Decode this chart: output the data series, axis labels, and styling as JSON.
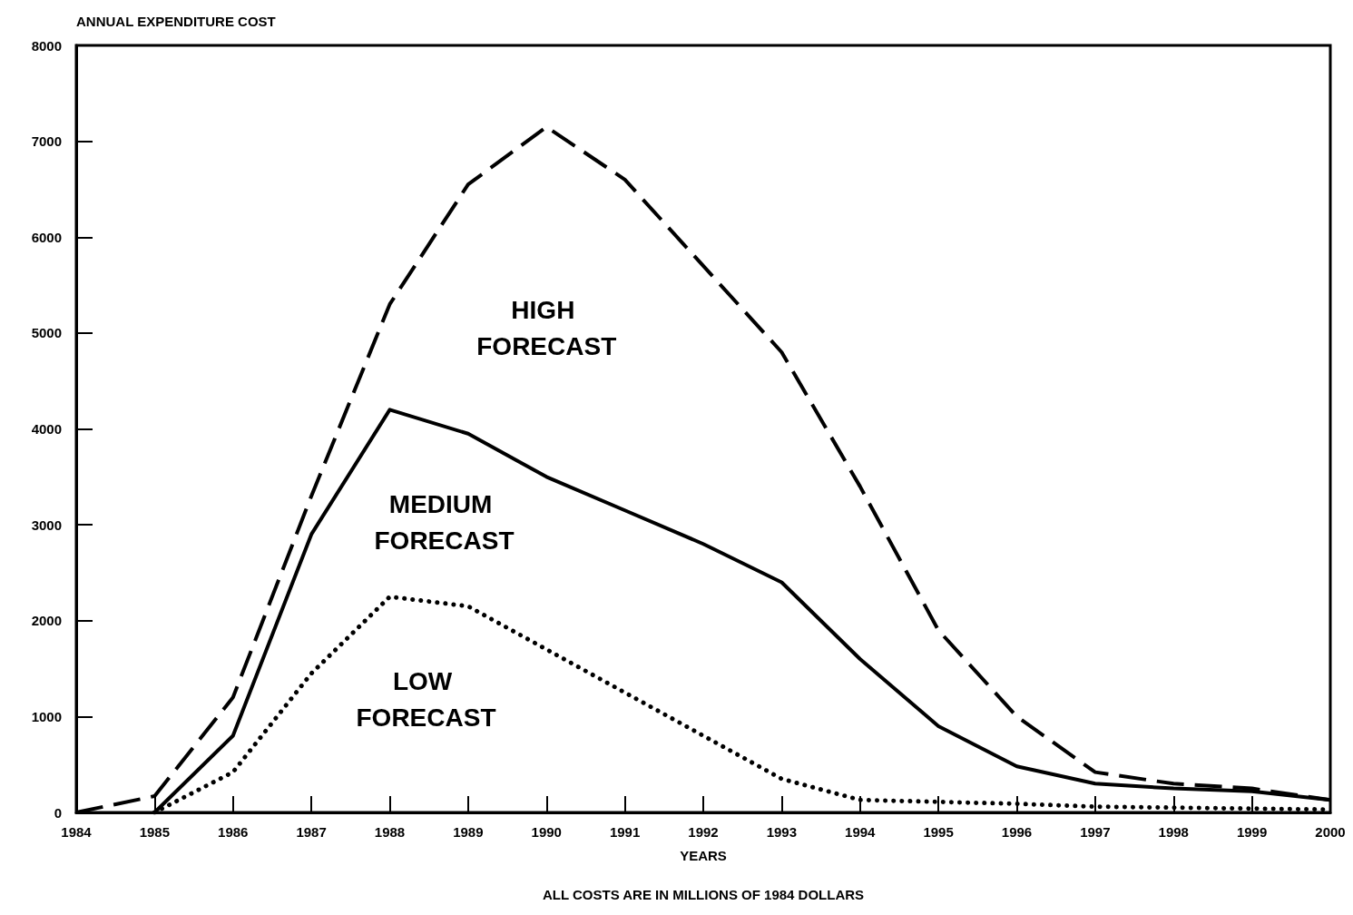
{
  "chart_data": {
    "type": "line",
    "ylabel": "ANNUAL EXPENDITURE COST",
    "xlabel": "YEARS",
    "x": [
      1984,
      1985,
      1986,
      1987,
      1988,
      1989,
      1990,
      1991,
      1992,
      1993,
      1994,
      1995,
      1996,
      1997,
      1998,
      1999,
      2000
    ],
    "series": [
      {
        "name": "HIGH FORECAST",
        "color": "#000000",
        "line_style": "dashed",
        "values": [
          0,
          170,
          1200,
          3300,
          5300,
          6550,
          7150,
          6600,
          5700,
          4800,
          3400,
          1900,
          1000,
          420,
          300,
          250,
          130
        ]
      },
      {
        "name": "MEDIUM FORECAST",
        "color": "#000000",
        "line_style": "solid",
        "values": [
          null,
          0,
          800,
          2900,
          4200,
          3950,
          3500,
          3150,
          2800,
          2400,
          1600,
          900,
          480,
          300,
          250,
          220,
          130
        ]
      },
      {
        "name": "LOW FORECAST",
        "color": "#000000",
        "line_style": "dotted",
        "values": [
          null,
          0,
          420,
          1450,
          2250,
          2150,
          1700,
          1250,
          800,
          350,
          130,
          110,
          90,
          60,
          50,
          40,
          30
        ]
      }
    ],
    "xlim": [
      1984,
      2000
    ],
    "xticks": [
      1984,
      1985,
      1986,
      1987,
      1988,
      1989,
      1990,
      1991,
      1992,
      1993,
      1994,
      1995,
      1996,
      1997,
      1998,
      1999,
      2000
    ],
    "ylim": [
      0,
      8000
    ],
    "yticks": [
      0,
      1000,
      2000,
      3000,
      4000,
      5000,
      6000,
      7000,
      8000
    ],
    "grid": false,
    "marker": "none",
    "annotations": [
      "ALL COSTS ARE IN MILLIONS OF 1984 DOLLARS"
    ]
  }
}
